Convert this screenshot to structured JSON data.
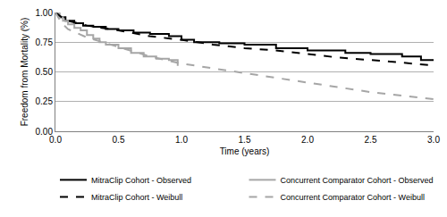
{
  "chart_data": {
    "type": "line",
    "x_label": "Time (years)",
    "y_label": "Freedom from Mortality (%)",
    "xlim": [
      0,
      3
    ],
    "xticks": [
      {
        "value": 0,
        "label": "0.0"
      },
      {
        "value": 0.5,
        "label": "0.5"
      },
      {
        "value": 1,
        "label": "1.0"
      },
      {
        "value": 1.5,
        "label": "1.5"
      },
      {
        "value": 2,
        "label": "2.0"
      },
      {
        "value": 2.5,
        "label": "2.5"
      },
      {
        "value": 3,
        "label": "3.0"
      }
    ],
    "ylim": [
      0,
      1
    ],
    "yticks": [
      {
        "value": 0,
        "label": "0.00"
      },
      {
        "value": 0.25,
        "label": "0.25"
      },
      {
        "value": 0.5,
        "label": "0.50"
      },
      {
        "value": 0.75,
        "label": "0.75"
      },
      {
        "value": 1,
        "label": "1.00"
      }
    ],
    "grid": true,
    "legend": "bottom",
    "series": [
      {
        "name": "MitraClip Cohort - Observed",
        "type": "step",
        "line_style": "solid",
        "color": "#000000",
        "x": [
          0,
          0.03,
          0.08,
          0.15,
          0.22,
          0.3,
          0.4,
          0.5,
          0.62,
          0.75,
          0.9,
          1.0,
          1.1,
          1.3,
          1.5,
          1.75,
          2.0,
          2.3,
          2.5,
          2.75,
          2.9,
          3.0
        ],
        "values": [
          1.0,
          0.96,
          0.93,
          0.91,
          0.89,
          0.88,
          0.86,
          0.85,
          0.83,
          0.82,
          0.8,
          0.77,
          0.75,
          0.74,
          0.73,
          0.7,
          0.68,
          0.66,
          0.65,
          0.63,
          0.6,
          0.6
        ]
      },
      {
        "name": "Concurrent Comparator Cohort - Observed",
        "type": "step",
        "line_style": "solid",
        "color": "#a6a6a6",
        "x": [
          0,
          0.03,
          0.06,
          0.1,
          0.15,
          0.2,
          0.25,
          0.3,
          0.35,
          0.4,
          0.5,
          0.6,
          0.7,
          0.8,
          0.9,
          0.97,
          0.97
        ],
        "values": [
          1.0,
          0.96,
          0.93,
          0.9,
          0.87,
          0.85,
          0.81,
          0.78,
          0.75,
          0.73,
          0.7,
          0.66,
          0.63,
          0.61,
          0.6,
          0.6,
          0.55
        ]
      },
      {
        "name": "MitraClip Cohort - Weibull",
        "type": "line",
        "line_style": "dashed",
        "color": "#000000",
        "x": [
          0,
          0.05,
          0.1,
          0.25,
          0.5,
          0.75,
          1.0,
          1.25,
          1.5,
          1.75,
          2.0,
          2.25,
          2.5,
          2.75,
          3.0
        ],
        "values": [
          1.0,
          0.96,
          0.93,
          0.89,
          0.85,
          0.8,
          0.77,
          0.73,
          0.7,
          0.68,
          0.65,
          0.62,
          0.6,
          0.58,
          0.555
        ]
      },
      {
        "name": "Concurrent Comparator Cohort - Weibull",
        "type": "line",
        "line_style": "dashed",
        "color": "#a6a6a6",
        "x": [
          0,
          0.05,
          0.1,
          0.25,
          0.5,
          0.75,
          1.0,
          1.25,
          1.5,
          1.75,
          2.0,
          2.25,
          2.5,
          2.75,
          3.0
        ],
        "values": [
          1.0,
          0.91,
          0.86,
          0.79,
          0.71,
          0.63,
          0.57,
          0.53,
          0.49,
          0.45,
          0.41,
          0.37,
          0.33,
          0.3,
          0.27
        ]
      }
    ]
  }
}
